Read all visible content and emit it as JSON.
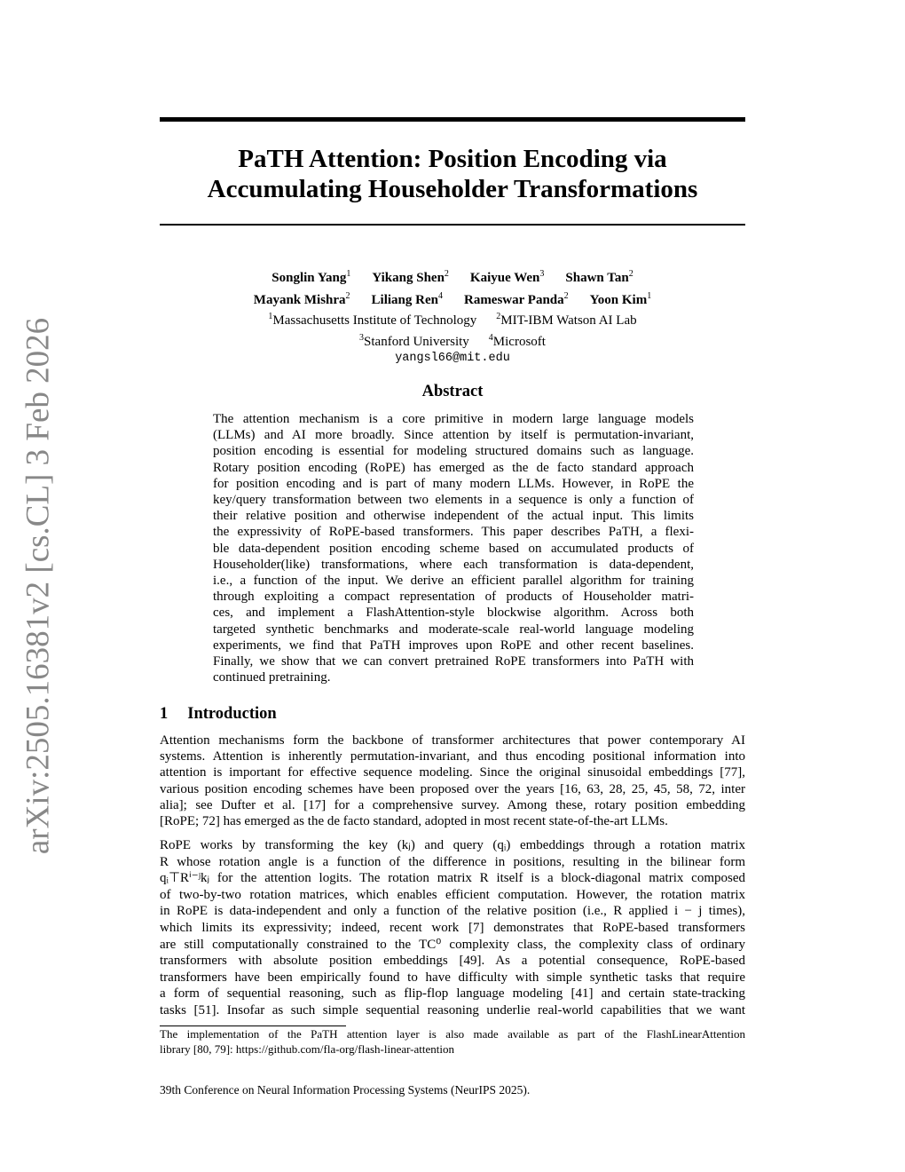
{
  "header": {
    "arxiv_label": "arXiv:2505.16381v2  [cs.CL]  3 Feb 2026"
  },
  "title": [
    "PaTH Attention: Position Encoding via",
    "Accumulating Householder Transformations"
  ],
  "authors": [
    [
      {
        "name": "Songlin Yang",
        "aff": "1"
      },
      {
        "name": "Yikang Shen",
        "aff": "2"
      },
      {
        "name": "Kaiyue Wen",
        "aff": "3"
      },
      {
        "name": "Shawn Tan",
        "aff": "2"
      }
    ],
    [
      {
        "name": "Mayank Mishra",
        "aff": "2"
      },
      {
        "name": "Liliang Ren",
        "aff": "4"
      },
      {
        "name": "Rameswar Panda",
        "aff": "2"
      },
      {
        "name": "Yoon Kim",
        "aff": "1"
      }
    ]
  ],
  "affiliations": [
    [
      {
        "num": "1",
        "name": "Massachusetts Institute of Technology"
      },
      {
        "num": "2",
        "name": "MIT-IBM Watson AI Lab"
      }
    ],
    [
      {
        "num": "3",
        "name": "Stanford University"
      },
      {
        "num": "4",
        "name": "Microsoft"
      }
    ]
  ],
  "email": "yangsl66@mit.edu",
  "abstract": {
    "heading": "Abstract",
    "lines": [
      "The attention mechanism is a core primitive in modern large language models",
      "(LLMs) and AI more broadly. Since attention by itself is permutation-invariant,",
      "position encoding is essential for modeling structured domains such as language.",
      "Rotary position encoding (RoPE) has emerged as the de facto standard approach",
      "for position encoding and is part of many modern LLMs. However, in RoPE the",
      "key/query transformation between two elements in a sequence is only a function of",
      "their relative position and otherwise independent of the actual input. This limits",
      "the expressivity of RoPE-based transformers. This paper describes PaTH, a flexi-",
      "ble data-dependent position encoding scheme based on accumulated products of",
      "Householder(like) transformations, where each transformation is data-dependent,",
      "i.e., a function of the input. We derive an efficient parallel algorithm for training",
      "through exploiting a compact representation of products of Householder matri-",
      "ces, and implement a FlashAttention-style blockwise algorithm. Across both",
      "targeted synthetic benchmarks and moderate-scale real-world language modeling",
      "experiments, we find that PaTH improves upon RoPE and other recent baselines.",
      "Finally, we show that we can convert pretrained RoPE transformers into PaTH with",
      "continued pretraining."
    ]
  },
  "section": {
    "number": "1",
    "title": "Introduction",
    "paragraphs": [
      [
        "Attention mechanisms form the backbone of transformer architectures that power contemporary AI",
        "systems. Attention is inherently permutation-invariant, and thus encoding positional information into",
        "attention is important for effective sequence modeling. Since the original sinusoidal embeddings [77],",
        "various position encoding schemes have been proposed over the years [16, 63, 28, 25, 45, 58, 72, inter",
        "alia]; see Dufter et al. [17] for a comprehensive survey. Among these, rotary position embedding",
        "[RoPE; 72] has emerged as the de facto standard, adopted in most recent state-of-the-art LLMs."
      ],
      [
        "RoPE works by transforming the key (kⱼ) and query (qᵢ) embeddings through a rotation matrix",
        "R whose rotation angle is a function of the difference in positions, resulting in the bilinear form",
        "qᵢ⊤Rⁱ⁻ʲkⱼ for the attention logits. The rotation matrix R itself is a block-diagonal matrix composed",
        "of two-by-two rotation matrices, which enables efficient computation. However, the rotation matrix",
        "in RoPE is data-independent and only a function of the relative position (i.e., R applied i − j times),",
        "which limits its expressivity; indeed, recent work [7] demonstrates that RoPE-based transformers",
        "are still computationally constrained to the TC⁰ complexity class, the complexity class of ordinary",
        "transformers with absolute position embeddings [49]. As a potential consequence, RoPE-based",
        "transformers have been empirically found to have difficulty with simple synthetic tasks that require",
        "a form of sequential reasoning, such as flip-flop language modeling [41] and certain state-tracking",
        "tasks [51]. Insofar as such simple sequential reasoning underlie real-world capabilities that we want"
      ]
    ]
  },
  "footnote": [
    "The implementation of the PaTH attention layer is also made available as part of the FlashLinearAttention",
    "library [80, 79]: https://github.com/fla-org/flash-linear-attention"
  ],
  "conference": "39th Conference on Neural Information Processing Systems (NeurIPS 2025)."
}
